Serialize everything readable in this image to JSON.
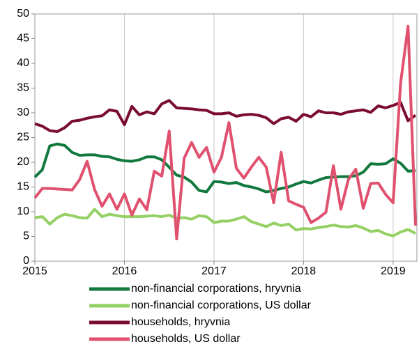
{
  "chart_data": {
    "type": "line",
    "categories": [
      "2015",
      null,
      null,
      null,
      null,
      null,
      null,
      null,
      null,
      null,
      null,
      null,
      "2016",
      null,
      null,
      null,
      null,
      null,
      null,
      null,
      null,
      null,
      null,
      null,
      "2017",
      null,
      null,
      null,
      null,
      null,
      null,
      null,
      null,
      null,
      null,
      null,
      "2018",
      null,
      null,
      null,
      null,
      null,
      null,
      null,
      null,
      null,
      null,
      null,
      "2019",
      null,
      null,
      null
    ],
    "series": [
      {
        "name": "non-financial corporations, hryvnia",
        "color": "#11793d",
        "values": [
          17,
          18.5,
          23.3,
          23.7,
          23.4,
          22,
          21.4,
          21.5,
          21.5,
          21.2,
          21.1,
          20.6,
          20.3,
          20.2,
          20.5,
          21.1,
          21.1,
          20.5,
          19,
          17.4,
          17,
          16,
          14.3,
          14,
          16.1,
          16,
          15.7,
          15.9,
          15.3,
          15,
          14.6,
          14,
          14.3,
          14.7,
          15,
          15.6,
          16.1,
          15.8,
          16.4,
          16.9,
          17,
          17.1,
          17.1,
          17.3,
          18,
          19.7,
          19.6,
          19.7,
          20.7,
          19.8,
          18.2,
          18.3
        ]
      },
      {
        "name": "non-financial corporations, US dollar",
        "color": "#95d064",
        "values": [
          8.8,
          9,
          7.5,
          8.8,
          9.5,
          9.2,
          8.8,
          8.7,
          10.5,
          9,
          9.5,
          9.2,
          9,
          9,
          9,
          9.1,
          9.2,
          9,
          9.3,
          8.7,
          8.8,
          8.5,
          9.2,
          9,
          7.8,
          8.1,
          8.1,
          8.5,
          9,
          8,
          7.5,
          7,
          7.7,
          7.2,
          7.5,
          6.3,
          6.6,
          6.5,
          6.8,
          7,
          7.3,
          7,
          6.9,
          7.2,
          6.7,
          6,
          6.2,
          5.5,
          5.1,
          5.9,
          6.4,
          5.6
        ]
      },
      {
        "name": "households, hryvnia",
        "color": "#7a0c30",
        "values": [
          27.8,
          27.3,
          26.4,
          26.2,
          27,
          28.3,
          28.5,
          28.9,
          29.2,
          29.4,
          30.6,
          30.3,
          27.6,
          31.3,
          29.6,
          30.2,
          29.8,
          31.8,
          32.5,
          31,
          30.9,
          30.8,
          30.6,
          30.5,
          29.8,
          29.8,
          30,
          29.3,
          29.6,
          29.7,
          29.5,
          29,
          27.8,
          28.8,
          29.1,
          28.3,
          29.7,
          29.2,
          30.4,
          30,
          30,
          29.7,
          30.2,
          30.4,
          30.6,
          30.1,
          31.4,
          31,
          31.5,
          32.1,
          28.4,
          29.5
        ]
      },
      {
        "name": "households, US dollar",
        "color": "#e0516f",
        "values": [
          12.8,
          14.7,
          14.7,
          14.6,
          14.5,
          14.4,
          16.5,
          20.2,
          14.5,
          11.1,
          13.6,
          10.5,
          13.6,
          9.3,
          12.6,
          10.4,
          18.2,
          17.2,
          26.3,
          4.5,
          20.8,
          24,
          21,
          23,
          18,
          21,
          28,
          18.8,
          16.8,
          19,
          21,
          19,
          11.8,
          22,
          12.2,
          11.5,
          10.9,
          7.8,
          8.7,
          9.9,
          19.3,
          10.5,
          16.5,
          18.6,
          10.7,
          15.7,
          15.8,
          13.5,
          11.8,
          36,
          47.5,
          7.2
        ]
      }
    ],
    "ylim": [
      0,
      50
    ],
    "yticks": [
      0,
      5,
      10,
      15,
      20,
      25,
      30,
      35,
      40,
      45,
      50
    ],
    "grid": true
  }
}
